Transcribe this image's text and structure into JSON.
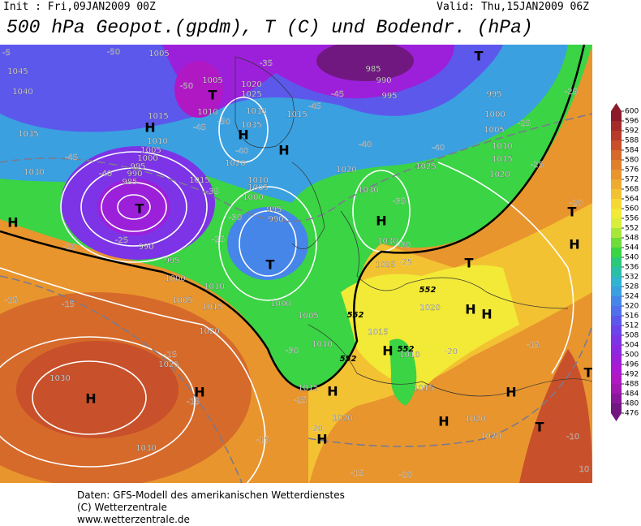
{
  "header": {
    "init": "Init : Fri,09JAN2009 00Z",
    "valid": "Valid: Thu,15JAN2009 06Z",
    "title": "500 hPa Geopot.(gpdm), T (C) und Bodendr. (hPa)"
  },
  "colorbar": {
    "ticks": [
      600,
      596,
      592,
      588,
      584,
      580,
      576,
      572,
      568,
      564,
      560,
      556,
      552,
      548,
      544,
      540,
      536,
      532,
      528,
      524,
      520,
      516,
      512,
      508,
      504,
      500,
      496,
      492,
      488,
      484,
      480,
      476
    ],
    "colors": [
      "#8b1a2b",
      "#a52a2a",
      "#b83a2a",
      "#c8502a",
      "#d66a2a",
      "#e07f2c",
      "#e8952e",
      "#eeab30",
      "#f3c232",
      "#f5d834",
      "#f2ea36",
      "#d8ee3a",
      "#a8e63a",
      "#6edc3a",
      "#3ad444",
      "#2ac87a",
      "#2ac0a8",
      "#30b4d0",
      "#3aa0e0",
      "#4686e8",
      "#5070ec",
      "#5c58ec",
      "#6c44ea",
      "#7c34e6",
      "#8c28e0",
      "#9c20da",
      "#aa1ad2",
      "#b018c4",
      "#a018b0",
      "#88189a",
      "#701880"
    ]
  },
  "map_labels": {
    "pressure": [
      "1045",
      "1040",
      "1035",
      "1030",
      "1005",
      "1005",
      "1010",
      "1020",
      "1025",
      "1030",
      "1035",
      "1015",
      "1010",
      "1005",
      "1000",
      "995",
      "990",
      "985",
      "1015",
      "1020",
      "1015",
      "1010",
      "1005",
      "1000",
      "995",
      "990",
      "990",
      "995",
      "1000",
      "1010",
      "1005",
      "1015",
      "1020",
      "1030",
      "1025",
      "1030",
      "985",
      "990",
      "995",
      "995",
      "1000",
      "1005",
      "1010",
      "1015",
      "1020",
      "1025",
      "1020",
      "1030",
      "1030",
      "1025",
      "1020",
      "1015",
      "1010",
      "1015",
      "1020",
      "1020",
      "1020",
      "1000",
      "1005",
      "1010",
      "1015"
    ],
    "temperature": [
      "-50",
      "-35",
      "-45",
      "-45",
      "-50",
      "-45",
      "-50",
      "-40",
      "-45",
      "-40",
      "-35",
      "-30",
      "-25",
      "-20",
      "-25",
      "-15",
      "-15",
      "-15",
      "-15",
      "-15",
      "-20",
      "-25",
      "-30",
      "-40",
      "-40",
      "-25",
      "-25",
      "-25",
      "-20",
      "-35",
      "-30",
      "-25",
      "-20",
      "-15",
      "-15",
      "-20",
      "-10",
      "-5",
      "10"
    ],
    "centers": [
      "H",
      "T",
      "H",
      "H",
      "T",
      "T",
      "H",
      "T",
      "H",
      "T",
      "T",
      "H",
      "H",
      "H",
      "H",
      "H",
      "H",
      "H",
      "H",
      "T",
      "T",
      "H",
      "H"
    ],
    "isohypse": [
      "552",
      "552",
      "552",
      "552"
    ]
  },
  "footer": {
    "source": "Daten: GFS-Modell des amerikanischen Wetterdienstes",
    "copyright": "(C) Wetterzentrale",
    "url": "www.wetterzentrale.de"
  }
}
